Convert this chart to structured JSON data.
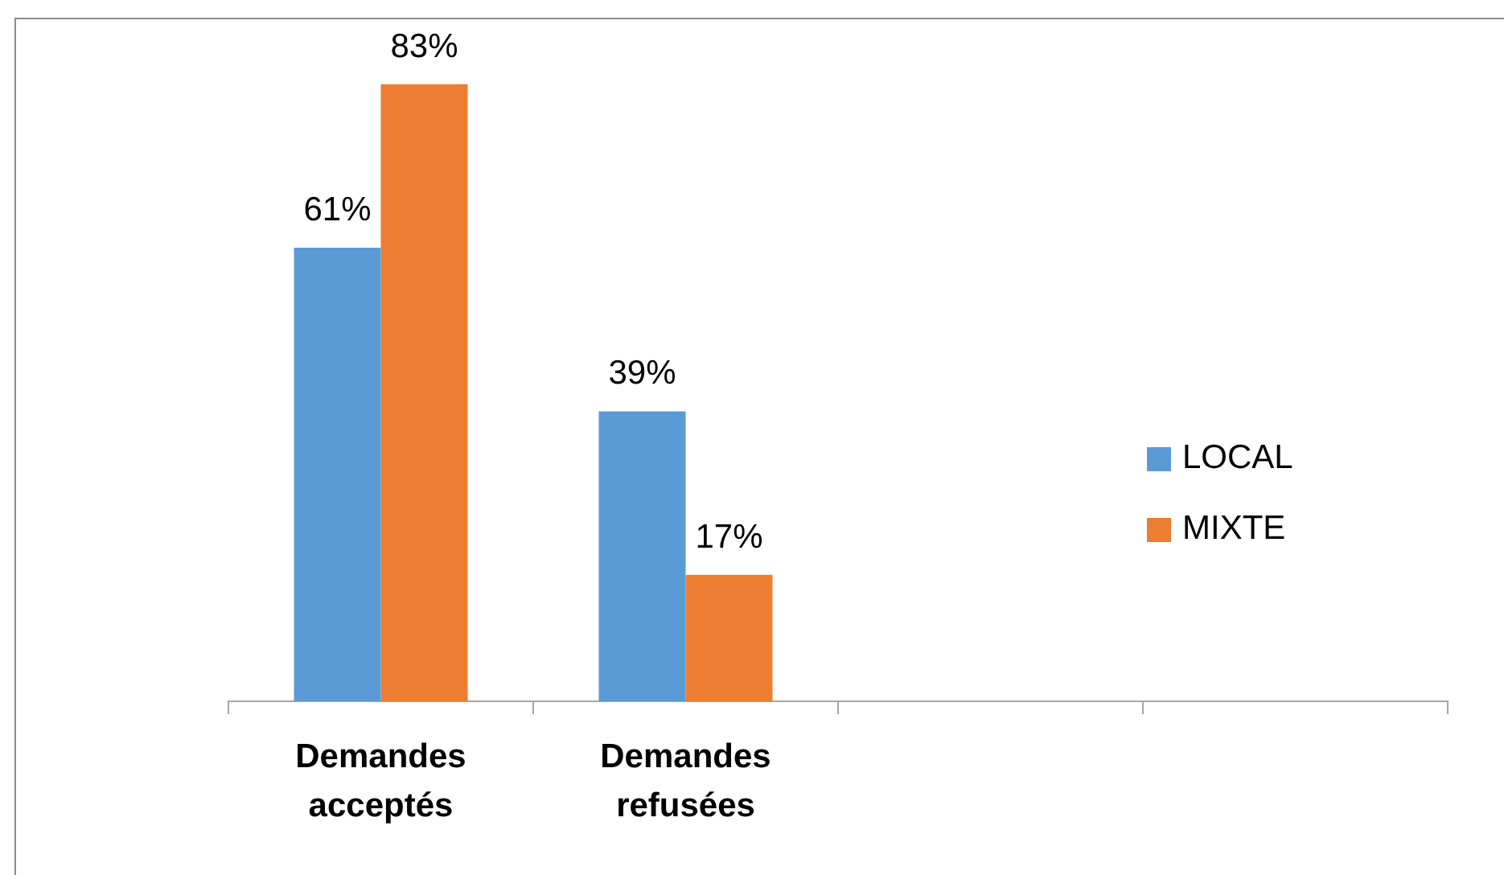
{
  "chart_data": {
    "type": "bar",
    "categories": [
      "Demandes acceptés",
      "Demandes refusées",
      null,
      null
    ],
    "series": [
      {
        "name": "LOCAL",
        "color": "#5b9bd5",
        "values": [
          61,
          39,
          null,
          null
        ],
        "value_labels": [
          "61%",
          "39%",
          null,
          null
        ]
      },
      {
        "name": "MIXTE",
        "color": "#ed7d31",
        "values": [
          83,
          17,
          null,
          null
        ],
        "value_labels": [
          "83%",
          "17%",
          null,
          null
        ]
      }
    ],
    "tick_labels": "x",
    "legend": "right"
  }
}
